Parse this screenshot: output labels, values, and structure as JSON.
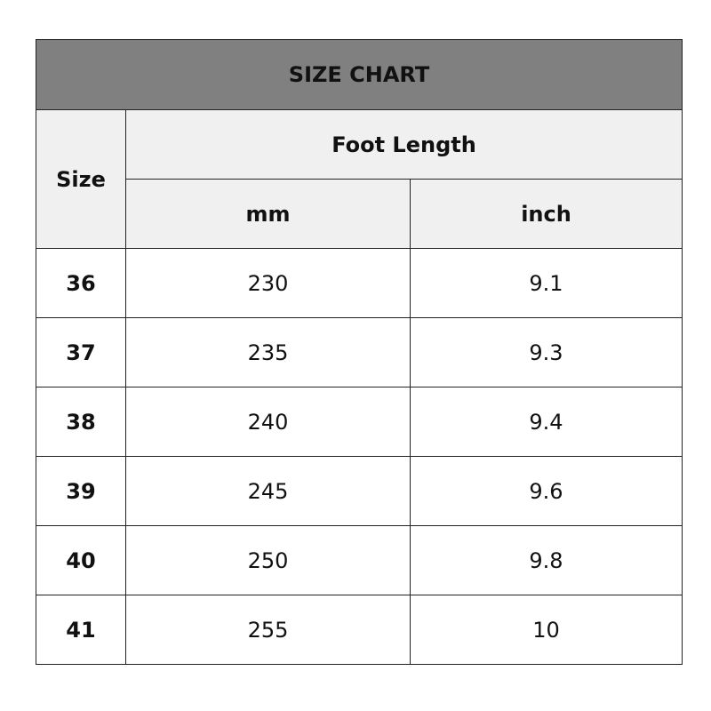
{
  "title": "SIZE CHART",
  "headers": {
    "size": "Size",
    "group": "Foot Length",
    "mm": "mm",
    "inch": "inch"
  },
  "rows": [
    {
      "size": "36",
      "mm": "230",
      "inch": "9.1"
    },
    {
      "size": "37",
      "mm": "235",
      "inch": "9.3"
    },
    {
      "size": "38",
      "mm": "240",
      "inch": "9.4"
    },
    {
      "size": "39",
      "mm": "245",
      "inch": "9.6"
    },
    {
      "size": "40",
      "mm": "250",
      "inch": "9.8"
    },
    {
      "size": "41",
      "mm": "255",
      "inch": "10"
    }
  ],
  "colors": {
    "title_bg": "#808080",
    "header_bg": "#f0f0f0"
  }
}
